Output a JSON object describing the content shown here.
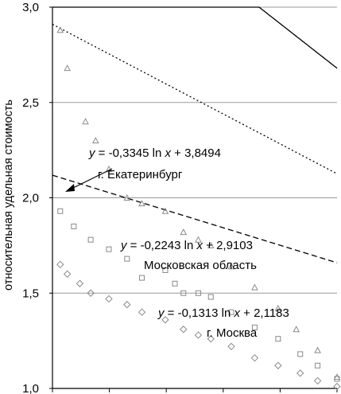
{
  "chart_data": {
    "type": "scatter",
    "ylabel": "относительная удельная стоимость",
    "xlabel": "",
    "ylim": [
      1.0,
      3.0
    ],
    "xlim": [
      1,
      33
    ],
    "yticks": [
      "1,0",
      "1,5",
      "2,0",
      "2,5",
      "3,0"
    ],
    "grid": true,
    "series": [
      {
        "name": "г. Екатеринбург",
        "equation": "y = -0,3345 ln x + 3,8494",
        "label_equation": "y = -0,3345 ln x + 3,8494",
        "line_style": "solid",
        "marker": "triangle",
        "coef": -0.3345,
        "intercept": 3.8494,
        "points": [
          [
            1.1,
            2.88
          ],
          [
            1.2,
            2.68
          ],
          [
            1.5,
            2.4
          ],
          [
            1.7,
            2.3
          ],
          [
            2,
            2.15
          ],
          [
            2.5,
            2.0
          ],
          [
            3,
            1.97
          ],
          [
            4,
            1.93
          ],
          [
            5,
            1.82
          ],
          [
            6,
            1.78
          ],
          [
            7,
            1.75
          ],
          [
            9,
            1.64
          ],
          [
            12,
            1.53
          ],
          [
            16,
            1.42
          ],
          [
            20,
            1.31
          ],
          [
            26,
            1.2
          ],
          [
            33,
            1.06
          ]
        ]
      },
      {
        "name": "Московская область",
        "equation": "y = -0,2243 ln x + 2,9103",
        "label_equation": "y = -0,2243 ln x + 2,9103",
        "line_style": "dotted",
        "marker": "square",
        "coef": -0.2243,
        "intercept": 2.9103,
        "points": [
          [
            1.1,
            1.93
          ],
          [
            1.3,
            1.85
          ],
          [
            1.6,
            1.78
          ],
          [
            2,
            1.73
          ],
          [
            2.5,
            1.68
          ],
          [
            3,
            1.58
          ],
          [
            4,
            1.62
          ],
          [
            4.5,
            1.55
          ],
          [
            5,
            1.5
          ],
          [
            6,
            1.5
          ],
          [
            7,
            1.48
          ],
          [
            9,
            1.4
          ],
          [
            12,
            1.32
          ],
          [
            16,
            1.26
          ],
          [
            21,
            1.18
          ],
          [
            26,
            1.12
          ],
          [
            33,
            1.05
          ]
        ]
      },
      {
        "name": "г. Москва",
        "equation": "y = -0,1313 ln x + 2,1183",
        "label_equation": "y = -0,1313 ln x + 2,1183",
        "line_style": "dashed",
        "marker": "diamond",
        "coef": -0.1313,
        "intercept": 2.1183,
        "points": [
          [
            1.1,
            1.65
          ],
          [
            1.2,
            1.6
          ],
          [
            1.4,
            1.55
          ],
          [
            1.6,
            1.5
          ],
          [
            2,
            1.47
          ],
          [
            2.5,
            1.44
          ],
          [
            3,
            1.4
          ],
          [
            4,
            1.36
          ],
          [
            5,
            1.31
          ],
          [
            6,
            1.28
          ],
          [
            7,
            1.26
          ],
          [
            9,
            1.22
          ],
          [
            12,
            1.16
          ],
          [
            16,
            1.12
          ],
          [
            21,
            1.08
          ],
          [
            26,
            1.04
          ],
          [
            33,
            1.01
          ]
        ]
      }
    ]
  },
  "annotations": {
    "ekb_label": "г. Екатеринбург",
    "mo_label": "Московская область",
    "msk_label": "г. Москва"
  }
}
